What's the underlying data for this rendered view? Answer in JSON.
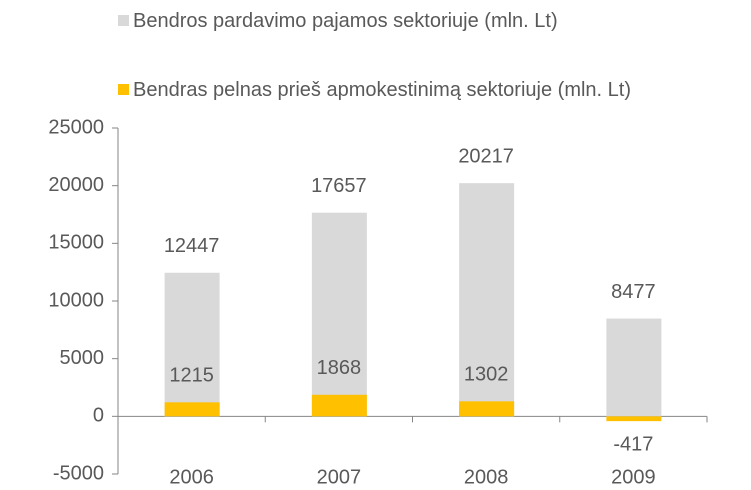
{
  "chart_data": {
    "type": "bar",
    "categories": [
      "2006",
      "2007",
      "2008",
      "2009"
    ],
    "series": [
      {
        "name": "Bendros pardavimo pajamos sektoriuje (mln. Lt)",
        "color": "#d9d9d9",
        "values": [
          12447,
          17657,
          20217,
          8477
        ]
      },
      {
        "name": "Bendras pelnas prieš apmokestinimą sektoriuje (mln. Lt)",
        "color": "#ffc000",
        "values": [
          1215,
          1868,
          1302,
          -417
        ]
      }
    ],
    "ylim": [
      -5000,
      25000
    ],
    "yticks": [
      -5000,
      0,
      5000,
      10000,
      15000,
      20000,
      25000
    ],
    "legend": "top",
    "grid": false
  }
}
